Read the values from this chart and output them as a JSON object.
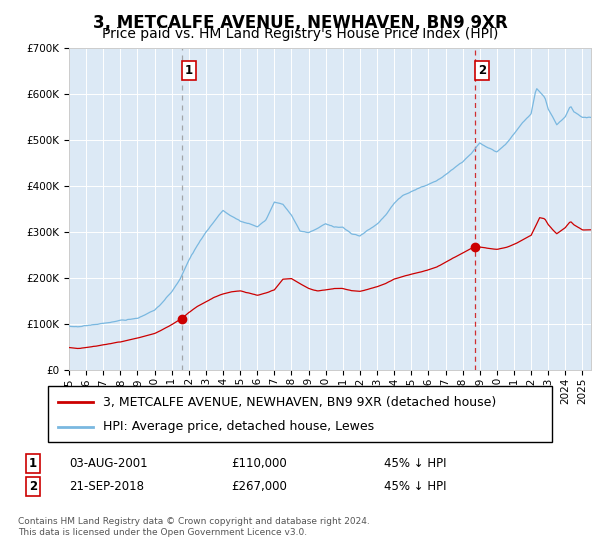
{
  "title": "3, METCALFE AVENUE, NEWHAVEN, BN9 9XR",
  "subtitle": "Price paid vs. HM Land Registry's House Price Index (HPI)",
  "hpi_legend": "HPI: Average price, detached house, Lewes",
  "price_legend": "3, METCALFE AVENUE, NEWHAVEN, BN9 9XR (detached house)",
  "transaction1": {
    "date": "03-AUG-2001",
    "price": 110000,
    "label": "1",
    "x_year": 2001.6
  },
  "transaction2": {
    "date": "21-SEP-2018",
    "price": 267000,
    "label": "2",
    "x_year": 2018.72
  },
  "footnote1": "Contains HM Land Registry data © Crown copyright and database right 2024.",
  "footnote2": "This data is licensed under the Open Government Licence v3.0.",
  "ylim": [
    0,
    700000
  ],
  "xlim_start": 1995.0,
  "xlim_end": 2025.5,
  "background_color": "#dce9f5",
  "hpi_color": "#7ab8e0",
  "price_color": "#cc0000",
  "vline1_color": "#888888",
  "vline2_color": "#cc0000",
  "title_fontsize": 12,
  "subtitle_fontsize": 10,
  "tick_fontsize": 7.5,
  "legend_fontsize": 9
}
